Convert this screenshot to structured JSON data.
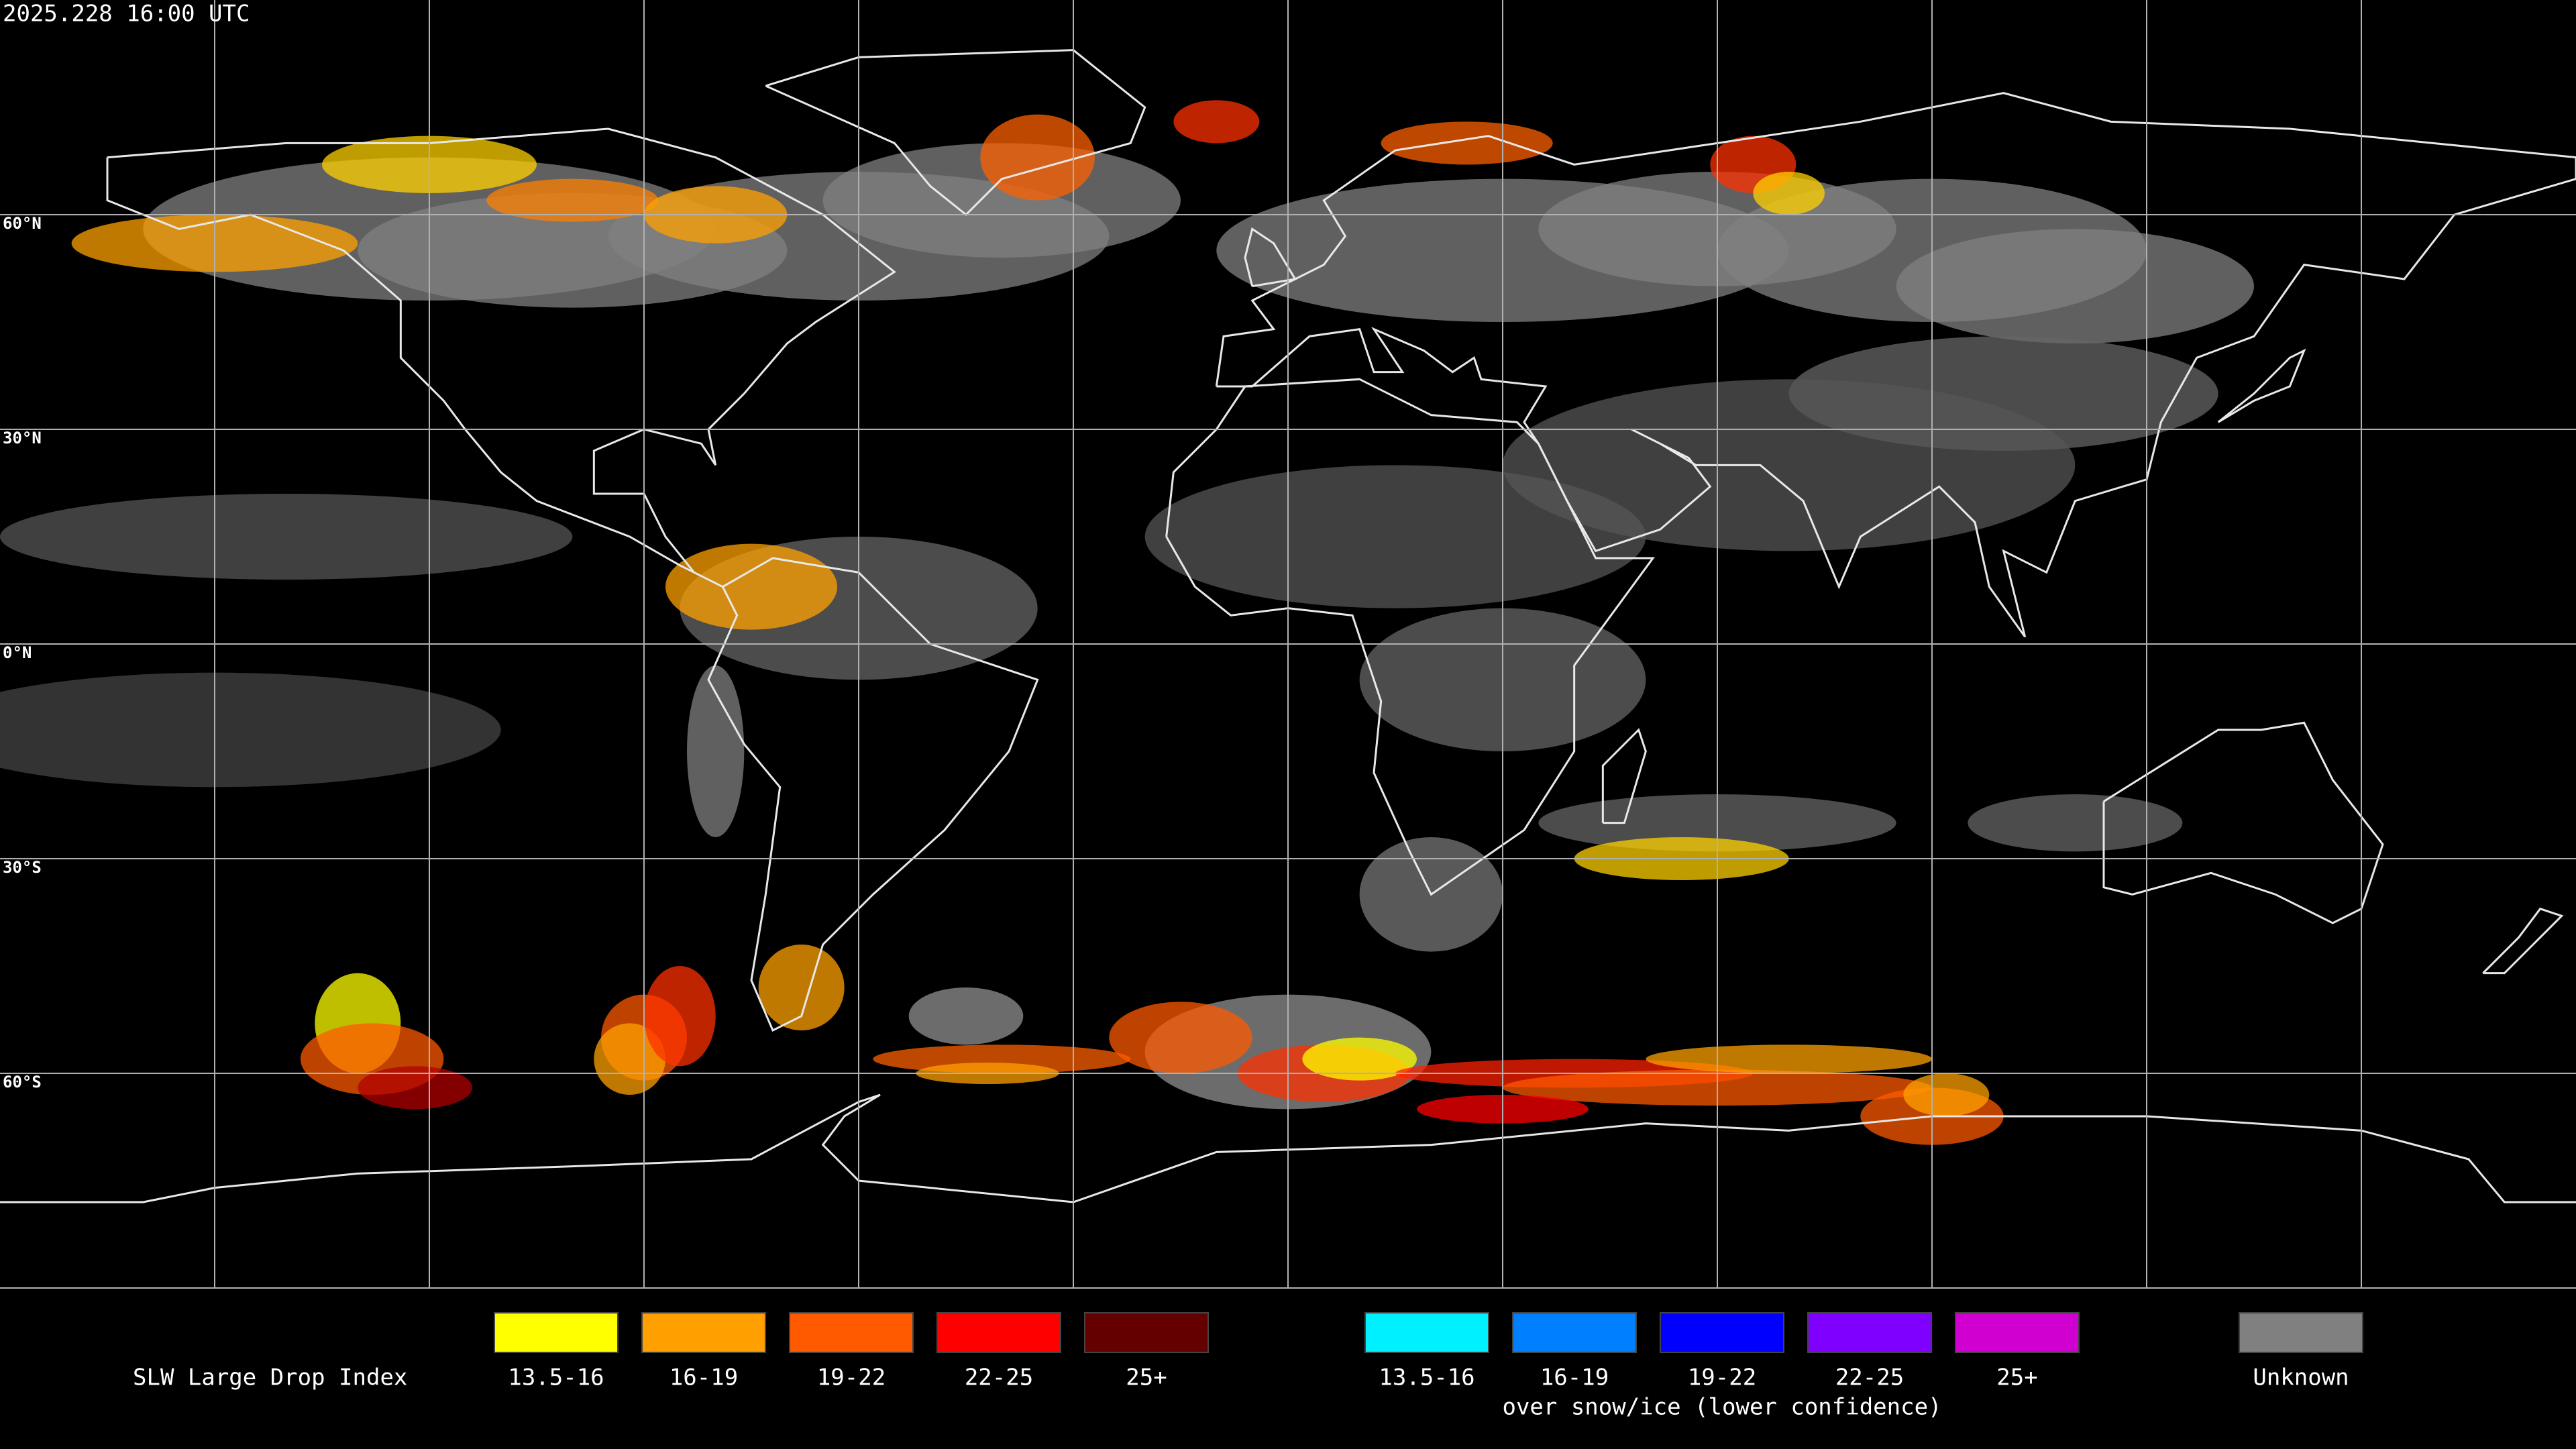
{
  "timestamp": "2025.228 16:00 UTC",
  "latitude_labels": [
    "60°N",
    "30°N",
    "0°N",
    "30°S",
    "60°S"
  ],
  "legend": {
    "title": "SLW Large Drop Index",
    "groups": [
      {
        "items": [
          {
            "label": "13.5-16",
            "color": "#ffff00"
          },
          {
            "label": "16-19",
            "color": "#ffa000"
          },
          {
            "label": "19-22",
            "color": "#ff5a00"
          },
          {
            "label": "22-25",
            "color": "#ff0000"
          },
          {
            "label": "25+",
            "color": "#640000"
          }
        ]
      },
      {
        "items": [
          {
            "label": "13.5-16",
            "color": "#00f0ff"
          },
          {
            "label": "16-19",
            "color": "#0080ff"
          },
          {
            "label": "19-22",
            "color": "#0000ff"
          },
          {
            "label": "22-25",
            "color": "#8000ff"
          },
          {
            "label": "25+",
            "color": "#d000d0"
          }
        ],
        "caption": "over snow/ice (lower confidence)"
      },
      {
        "items": [
          {
            "label": "Unknown",
            "color": "#808080"
          }
        ]
      }
    ]
  }
}
